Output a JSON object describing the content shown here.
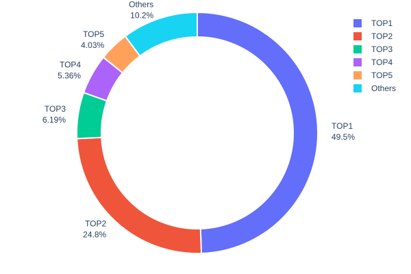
{
  "chart_data": {
    "type": "pie",
    "title": "",
    "hole": true,
    "slices": [
      {
        "name": "TOP1",
        "value": 49.5,
        "label": "49.5%",
        "color": "#636efa"
      },
      {
        "name": "TOP2",
        "value": 24.8,
        "label": "24.8%",
        "color": "#ef553b"
      },
      {
        "name": "TOP3",
        "value": 6.19,
        "label": "6.19%",
        "color": "#00cc96"
      },
      {
        "name": "TOP4",
        "value": 5.36,
        "label": "5.36%",
        "color": "#ab63fa"
      },
      {
        "name": "TOP5",
        "value": 4.03,
        "label": "4.03%",
        "color": "#ffa15a"
      },
      {
        "name": "Others",
        "value": 10.2,
        "label": "10.2%",
        "color": "#19d3f3"
      }
    ],
    "legend": {
      "placement": "top-right",
      "entries": [
        "TOP1",
        "TOP2",
        "TOP3",
        "TOP4",
        "TOP5",
        "Others"
      ]
    },
    "text_color": "#2a3f5f"
  }
}
